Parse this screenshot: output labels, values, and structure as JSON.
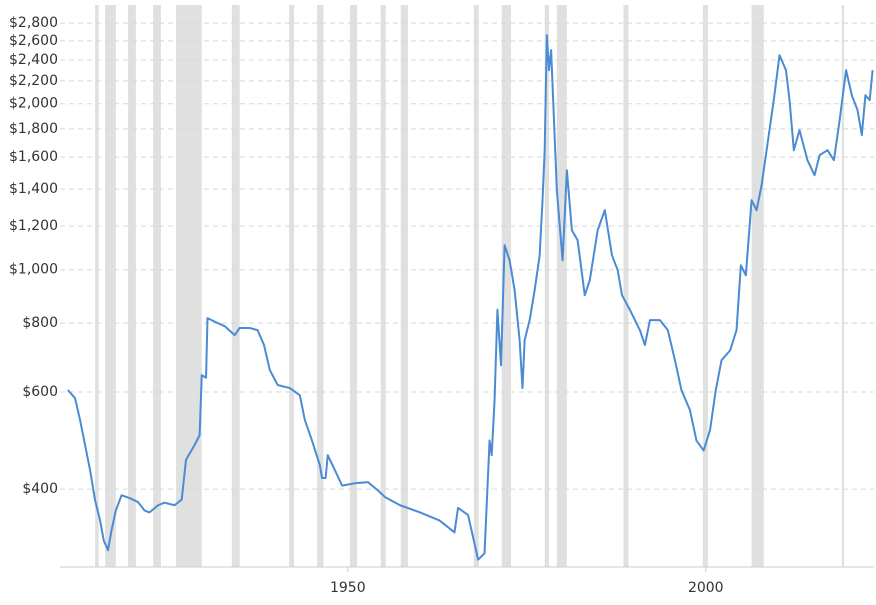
{
  "chart_data": {
    "type": "line",
    "log_scale": true,
    "grid": true,
    "color": "#4a8bd4",
    "band_color": "#e0e0e0",
    "xlim": [
      1909.8,
      2023.5
    ],
    "xticks": [
      1950,
      2000
    ],
    "ylim": [
      289,
      3020
    ],
    "yticks": [
      {
        "value": 400,
        "label": "$400"
      },
      {
        "value": 600,
        "label": "$600"
      },
      {
        "value": 800,
        "label": "$800"
      },
      {
        "value": 1000,
        "label": "$1,000"
      },
      {
        "value": 1200,
        "label": "$1,200"
      },
      {
        "value": 1400,
        "label": "$1,400"
      },
      {
        "value": 1600,
        "label": "$1,600"
      },
      {
        "value": 1800,
        "label": "$1,800"
      },
      {
        "value": 2000,
        "label": "$2,000"
      },
      {
        "value": 2200,
        "label": "$2,200"
      },
      {
        "value": 2400,
        "label": "$2,400"
      },
      {
        "value": 2600,
        "label": "$2,600"
      },
      {
        "value": 2800,
        "label": "$2,800"
      }
    ],
    "recessions": [
      [
        1914.7,
        1915.2
      ],
      [
        1916.1,
        1917.6
      ],
      [
        1919.3,
        1920.4
      ],
      [
        1922.8,
        1923.9
      ],
      [
        1926.0,
        1929.6
      ],
      [
        1933.8,
        1934.9
      ],
      [
        1941.8,
        1942.5
      ],
      [
        1945.7,
        1946.6
      ],
      [
        1950.3,
        1951.3
      ],
      [
        1954.6,
        1955.3
      ],
      [
        1957.4,
        1958.4
      ],
      [
        1967.6,
        1968.3
      ],
      [
        1971.5,
        1972.8
      ],
      [
        1977.5,
        1978.1
      ],
      [
        1979.2,
        1980.6
      ],
      [
        1988.5,
        1989.2
      ],
      [
        1999.6,
        2000.3
      ],
      [
        2006.4,
        2008.1
      ],
      [
        2019.0,
        2019.3
      ]
    ],
    "x": [
      1910.9,
      1911.9,
      1912.6,
      1913.3,
      1914.0,
      1914.7,
      1915.4,
      1915.9,
      1916.5,
      1917.0,
      1917.6,
      1918.4,
      1919.6,
      1920.7,
      1921.6,
      1922.3,
      1923.5,
      1924.4,
      1925.8,
      1926.8,
      1927.4,
      1928.6,
      1929.3,
      1929.6,
      1930.2,
      1930.4,
      1931.4,
      1932.8,
      1934.2,
      1934.9,
      1936.3,
      1937.4,
      1938.3,
      1939.1,
      1940.2,
      1941.9,
      1943.3,
      1944.0,
      1945.0,
      1946.1,
      1946.4,
      1946.9,
      1947.2,
      1948.2,
      1949.2,
      1951.0,
      1952.8,
      1954.2,
      1955.2,
      1957.3,
      1960.1,
      1962.8,
      1964.9,
      1965.4,
      1966.8,
      1967.6,
      1968.2,
      1969.1,
      1969.8,
      1970.1,
      1970.5,
      1970.9,
      1971.4,
      1971.9,
      1972.6,
      1973.3,
      1974.0,
      1974.4,
      1974.7,
      1975.4,
      1976.1,
      1976.8,
      1977.2,
      1977.5,
      1977.8,
      1978.1,
      1978.4,
      1978.8,
      1979.2,
      1980.0,
      1980.6,
      1981.3,
      1982.1,
      1983.1,
      1983.8,
      1984.9,
      1985.9,
      1986.9,
      1987.7,
      1988.3,
      1989.4,
      1990.8,
      1991.5,
      1992.2,
      1993.6,
      1994.7,
      1995.7,
      1996.6,
      1997.8,
      1998.7,
      1999.7,
      2000.6,
      2001.4,
      2002.2,
      2003.4,
      2004.3,
      2004.9,
      2005.6,
      2006.4,
      2007.1,
      2007.8,
      2008.7,
      2009.5,
      2010.3,
      2011.2,
      2011.7,
      2012.3,
      2013.1,
      2014.2,
      2015.2,
      2015.9,
      2017.0,
      2017.9,
      2018.7,
      2019.6,
      2020.4,
      2021.2,
      2021.8,
      2022.3,
      2022.9,
      2023.3
    ],
    "values": [
      605,
      585,
      534,
      481,
      433,
      382,
      351,
      323,
      310,
      337,
      366,
      390,
      385,
      379,
      366,
      363,
      374,
      378,
      374,
      383,
      452,
      481,
      501,
      644,
      637,
      817,
      805,
      790,
      761,
      784,
      784,
      777,
      730,
      658,
      618,
      610,
      592,
      534,
      490,
      442,
      419,
      419,
      461,
      433,
      406,
      410,
      412,
      398,
      387,
      374,
      363,
      351,
      334,
      370,
      359,
      323,
      298,
      306,
      490,
      461,
      580,
      846,
      671,
      1108,
      1040,
      918,
      745,
      610,
      745,
      810,
      918,
      1062,
      1337,
      1647,
      2663,
      2301,
      2502,
      1868,
      1394,
      1040,
      1515,
      1179,
      1131,
      899,
      957,
      1179,
      1282,
      1062,
      998,
      899,
      846,
      777,
      730,
      810,
      810,
      777,
      685,
      605,
      556,
      490,
      470,
      512,
      605,
      685,
      714,
      777,
      1019,
      977,
      1337,
      1282,
      1423,
      1718,
      2030,
      2449,
      2301,
      2030,
      1647,
      1791,
      1580,
      1484,
      1613,
      1647,
      1580,
      1868,
      2301,
      2072,
      1947,
      1754,
      2072,
      2030,
      2301
    ]
  }
}
